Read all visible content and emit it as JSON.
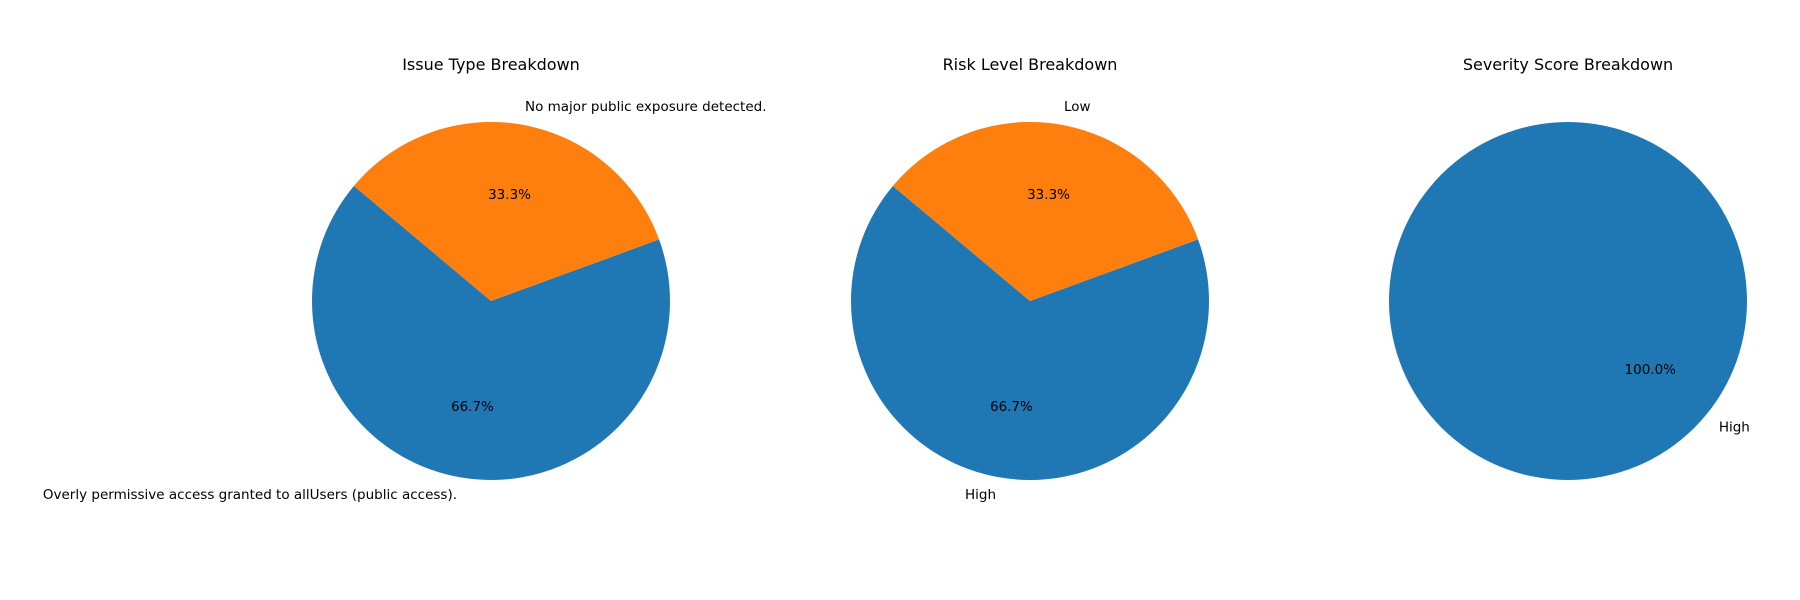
{
  "colors": {
    "series_1": "#1f77b4",
    "series_2": "#ff7f0e",
    "background": "#ffffff",
    "text": "#000000"
  },
  "chart_data": [
    {
      "type": "pie",
      "title": "Issue Type Breakdown",
      "labels": [
        "Overly permissive access granted to allUsers (public access).",
        "No major public exposure detected."
      ],
      "values": [
        66.7,
        33.3
      ],
      "percent_labels": [
        "66.7%",
        "33.3%"
      ],
      "colors": [
        "#1f77b4",
        "#ff7f0e"
      ],
      "start_angle_deg": 140,
      "direction": "counterclockwise"
    },
    {
      "type": "pie",
      "title": "Risk Level Breakdown",
      "labels": [
        "High",
        "Low"
      ],
      "values": [
        66.7,
        33.3
      ],
      "percent_labels": [
        "66.7%",
        "33.3%"
      ],
      "colors": [
        "#1f77b4",
        "#ff7f0e"
      ],
      "start_angle_deg": 140,
      "direction": "counterclockwise"
    },
    {
      "type": "pie",
      "title": "Severity Score Breakdown",
      "labels": [
        "High"
      ],
      "values": [
        100.0
      ],
      "percent_labels": [
        "100.0%"
      ],
      "colors": [
        "#1f77b4"
      ],
      "start_angle_deg": 140,
      "direction": "counterclockwise"
    }
  ]
}
